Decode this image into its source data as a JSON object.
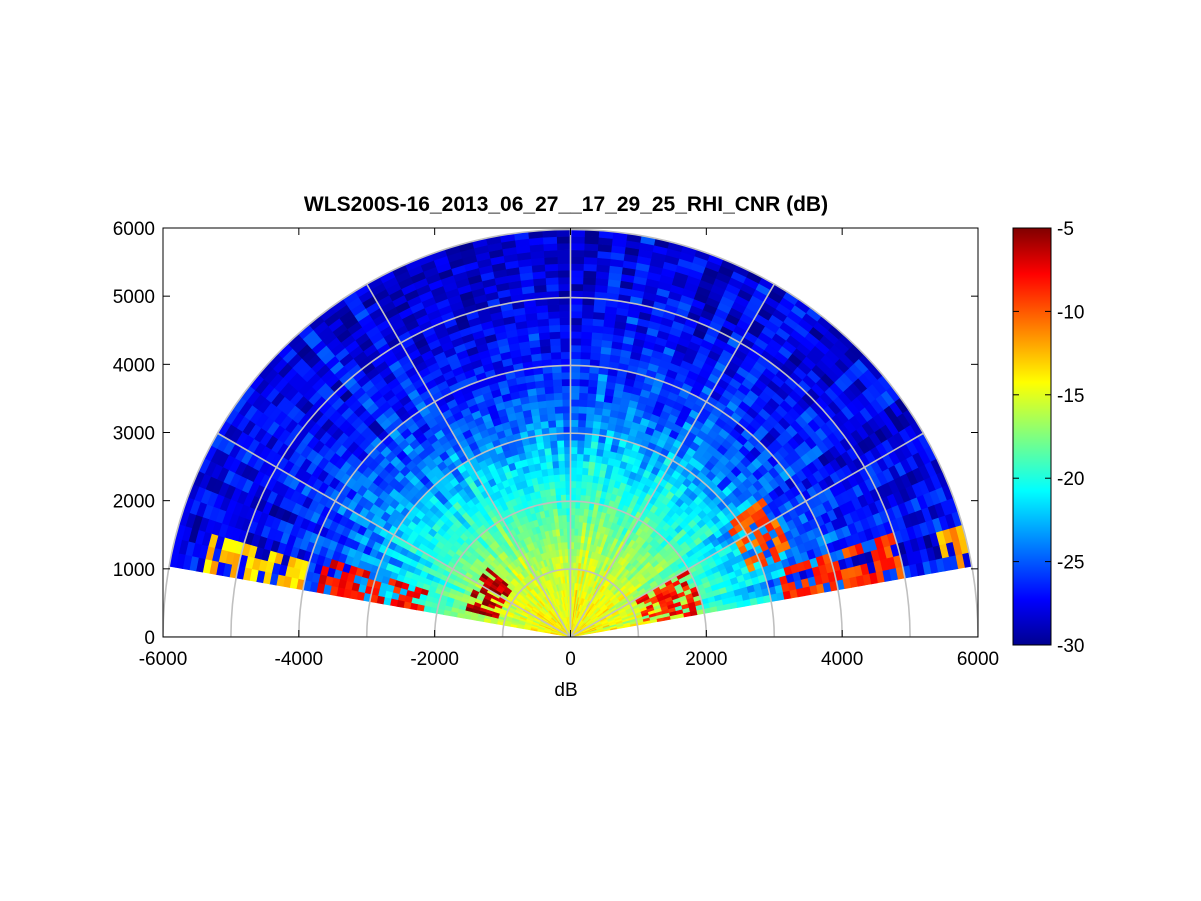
{
  "chart_data": {
    "type": "heatmap",
    "subtype": "polar-rhi-sector",
    "title": "WLS200S-16_2013_06_27__17_29_25_RHI_CNR (dB)",
    "xlabel": "dB",
    "ylabel": "",
    "xlim": [
      -6000,
      6000
    ],
    "ylim": [
      0,
      6000
    ],
    "xticks": [
      -6000,
      -4000,
      -2000,
      0,
      2000,
      4000,
      6000
    ],
    "yticks": [
      0,
      1000,
      2000,
      3000,
      4000,
      5000,
      6000
    ],
    "grid": true,
    "polar_grid": {
      "range_rings": [
        1000,
        2000,
        3000,
        4000,
        5000,
        6000
      ],
      "spokes_deg": [
        0,
        30,
        60,
        90,
        120,
        150,
        180
      ]
    },
    "scan": {
      "elevation_start_deg": 10,
      "elevation_end_deg": 170,
      "max_range": 6000
    },
    "colorbar": {
      "colormap": "jet",
      "min": -30,
      "max": -5,
      "ticks": [
        -5,
        -10,
        -15,
        -20,
        -25,
        -30
      ],
      "placement": "right"
    },
    "colormap_stops": [
      "#00008f",
      "#0000ff",
      "#00ffff",
      "#ffff00",
      "#ff0000",
      "#800000"
    ],
    "profile_by_range": [
      {
        "range": 0,
        "value": -14
      },
      {
        "range": 500,
        "value": -14.5
      },
      {
        "range": 1000,
        "value": -15.5
      },
      {
        "range": 1500,
        "value": -17
      },
      {
        "range": 2000,
        "value": -19
      },
      {
        "range": 2500,
        "value": -21
      },
      {
        "range": 3000,
        "value": -23
      },
      {
        "range": 3500,
        "value": -25
      },
      {
        "range": 4000,
        "value": -26
      },
      {
        "range": 4500,
        "value": -27
      },
      {
        "range": 5000,
        "value": -27.5
      },
      {
        "range": 6000,
        "value": -28
      }
    ],
    "enhanced_bands": [
      {
        "elevation_start_deg": 10,
        "elevation_end_deg": 30,
        "range_start": 1100,
        "range_end": 2000,
        "value": -8
      },
      {
        "elevation_start_deg": 20,
        "elevation_end_deg": 35,
        "range_start": 2800,
        "range_end": 3500,
        "value": -10
      },
      {
        "elevation_start_deg": 10,
        "elevation_end_deg": 18,
        "range_start": 3200,
        "range_end": 5000,
        "value": -9
      },
      {
        "elevation_start_deg": 10,
        "elevation_end_deg": 15,
        "range_start": 5600,
        "range_end": 6000,
        "value": -12
      },
      {
        "elevation_start_deg": 140,
        "elevation_end_deg": 165,
        "range_start": 1150,
        "range_end": 1600,
        "value": -6
      },
      {
        "elevation_start_deg": 162,
        "elevation_end_deg": 170,
        "range_start": 2200,
        "range_end": 3800,
        "value": -8
      },
      {
        "elevation_start_deg": 165,
        "elevation_end_deg": 170,
        "range_start": 4000,
        "range_end": 5500,
        "value": -13
      }
    ]
  },
  "colors": {
    "grid": "#c0c0c0",
    "axes": "#000000",
    "background": "#ffffff"
  }
}
